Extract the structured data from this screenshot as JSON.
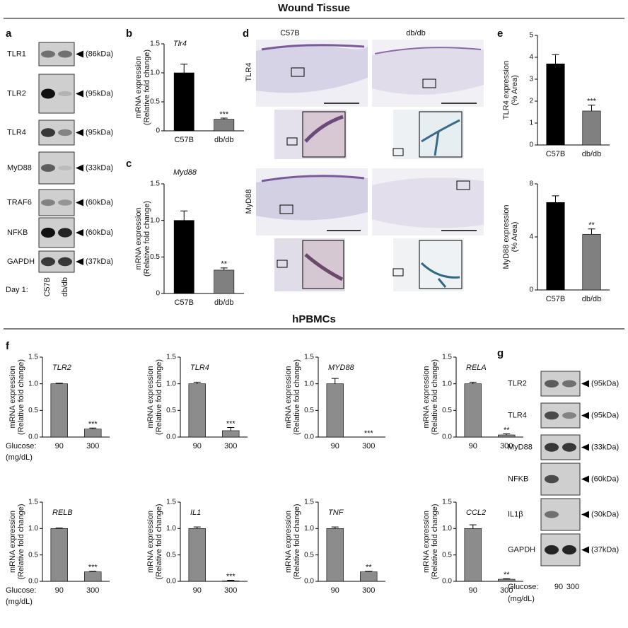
{
  "titles": [
    "Wound Tissue",
    "hPBMCs"
  ],
  "panel_a": {
    "label": "a",
    "rows": [
      {
        "name": "TLR1",
        "size": "(86kDa)"
      },
      {
        "name": "TLR2",
        "size": "(95kDa)"
      },
      {
        "name": "TLR4",
        "size": "(95kDa)"
      },
      {
        "name": "MyD88",
        "size": "(33kDa)"
      },
      {
        "name": "TRAF6",
        "size": "(60kDa)"
      },
      {
        "name": "NFKB",
        "size": "(60kDa)"
      },
      {
        "name": "GAPDH",
        "size": "(37kDa)"
      }
    ],
    "lane_prefix": "Day 1:",
    "lanes": [
      "C57B",
      "db/db"
    ]
  },
  "panel_d": {
    "label": "d",
    "columns": [
      "C57B",
      "db/db"
    ],
    "rows": [
      "TLR4",
      "MyD88"
    ]
  },
  "panel_g": {
    "label": "g",
    "rows": [
      {
        "name": "TLR2",
        "size": "(95kDa)"
      },
      {
        "name": "TLR4",
        "size": "(95kDa)"
      },
      {
        "name": "MyD88",
        "size": "(33kDa)"
      },
      {
        "name": "NFKB",
        "size": "(60kDa)"
      },
      {
        "name": "IL1β",
        "size": "(30kDa)"
      },
      {
        "name": "GAPDH",
        "size": "(37kDa)"
      }
    ],
    "lane_prefix": "Glucose:",
    "lanes": [
      "90",
      "300"
    ],
    "unit": "(mg/dL)"
  },
  "chart_data": [
    {
      "type": "bar",
      "panel": "b",
      "title": "Tlr4",
      "ylabel": [
        "mRNA expression",
        "(Relative fold change)"
      ],
      "categories": [
        "C57B",
        "db/db"
      ],
      "values": [
        1.0,
        0.2
      ],
      "errors": [
        0.15,
        0.02
      ],
      "annotations": [
        null,
        "***"
      ],
      "colors": [
        "#000000",
        "#808080"
      ],
      "ylim": [
        0,
        1.5
      ],
      "yticks": [
        0,
        0.5,
        {
          "value": 1,
          "label": "1.0"
        },
        1.5
      ]
    },
    {
      "type": "bar",
      "panel": "c",
      "title": "Myd88",
      "ylabel": [
        "mRNA expression",
        "(Relative fold change)"
      ],
      "categories": [
        "C57B",
        "db/db"
      ],
      "values": [
        1.0,
        0.32
      ],
      "errors": [
        0.13,
        0.03
      ],
      "annotations": [
        null,
        "**"
      ],
      "colors": [
        "#000000",
        "#808080"
      ],
      "ylim": [
        0,
        1.5
      ],
      "yticks": [
        0,
        0.5,
        {
          "value": 1,
          "label": "1.0"
        },
        1.5
      ]
    },
    {
      "type": "bar",
      "panel": "e",
      "ylabel": [
        "TLR4 expression",
        "(% Area)"
      ],
      "categories": [
        "C57B",
        "db/db"
      ],
      "values": [
        3.7,
        1.55
      ],
      "errors": [
        0.42,
        0.27
      ],
      "annotations": [
        null,
        "***"
      ],
      "colors": [
        "#000000",
        "#808080"
      ],
      "ylim": [
        0,
        5
      ],
      "yticks": [
        0,
        1,
        2,
        3,
        4,
        5
      ]
    },
    {
      "type": "bar",
      "ylabel": [
        "MyD88 expression",
        "(% Area)"
      ],
      "categories": [
        "C57B",
        "db/db"
      ],
      "values": [
        6.6,
        4.2
      ],
      "errors": [
        0.5,
        0.4
      ],
      "annotations": [
        null,
        "**"
      ],
      "colors": [
        "#000000",
        "#808080"
      ],
      "ylim": [
        0,
        8
      ],
      "yticks": [
        0,
        4,
        8
      ]
    },
    {
      "type": "bar",
      "panel": "f",
      "title": "TLR2",
      "ylabel": [
        "mRNA expression",
        "(Relative fold change)"
      ],
      "xlabel": [
        "Glucose:",
        "(mg/dL)"
      ],
      "categories": [
        "90",
        "300"
      ],
      "values": [
        1.0,
        0.15
      ],
      "errors": [
        0.01,
        0.02
      ],
      "annotations": [
        null,
        "***"
      ],
      "colors": [
        "#8c8c8c",
        "#8c8c8c"
      ],
      "ylim": [
        0,
        1.5
      ],
      "yticks": [
        {
          "value": 0,
          "label": "0.0"
        },
        0.5,
        {
          "value": 1,
          "label": "1.0"
        },
        1.5
      ]
    },
    {
      "type": "bar",
      "title": "TLR4",
      "ylabel": [
        "mRNA expression",
        "(Relative fold change)"
      ],
      "categories": [
        "90",
        "300"
      ],
      "values": [
        1.0,
        0.12
      ],
      "errors": [
        0.03,
        0.06
      ],
      "annotations": [
        null,
        "***"
      ],
      "colors": [
        "#8c8c8c",
        "#8c8c8c"
      ],
      "ylim": [
        0,
        1.5
      ],
      "yticks": [
        {
          "value": 0,
          "label": "0.0"
        },
        0.5,
        {
          "value": 1,
          "label": "1.0"
        },
        1.5
      ]
    },
    {
      "type": "bar",
      "title": "MYD88",
      "ylabel": [
        "mRNA expression",
        "(Relative fold change)"
      ],
      "categories": [
        "90",
        "300"
      ],
      "values": [
        1.0,
        0.0
      ],
      "errors": [
        0.1,
        0.0
      ],
      "annotations": [
        null,
        "***"
      ],
      "colors": [
        "#8c8c8c",
        "#8c8c8c"
      ],
      "ylim": [
        0,
        1.5
      ],
      "yticks": [
        {
          "value": 0,
          "label": "0.0"
        },
        0.5,
        {
          "value": 1,
          "label": "1.0"
        },
        1.5
      ]
    },
    {
      "type": "bar",
      "title": "RELA",
      "ylabel": [
        "mRNA expression",
        "(Relative fold change)"
      ],
      "categories": [
        "90",
        "300"
      ],
      "values": [
        1.0,
        0.04
      ],
      "errors": [
        0.03,
        0.02
      ],
      "annotations": [
        null,
        "**"
      ],
      "colors": [
        "#8c8c8c",
        "#8c8c8c"
      ],
      "ylim": [
        0,
        1.5
      ],
      "yticks": [
        {
          "value": 0,
          "label": "0.0"
        },
        0.5,
        {
          "value": 1,
          "label": "1.0"
        },
        1.5
      ]
    },
    {
      "type": "bar",
      "title": "RELB",
      "ylabel": [
        "mRNA expression",
        "(Relative fold change)"
      ],
      "xlabel": [
        "Glucose:",
        "(mg/dL)"
      ],
      "categories": [
        "90",
        "300"
      ],
      "values": [
        1.0,
        0.18
      ],
      "errors": [
        0.01,
        0.01
      ],
      "annotations": [
        null,
        "***"
      ],
      "colors": [
        "#8c8c8c",
        "#8c8c8c"
      ],
      "ylim": [
        0,
        1.5
      ],
      "yticks": [
        {
          "value": 0,
          "label": "0.0"
        },
        0.5,
        {
          "value": 1,
          "label": "1.0"
        },
        1.5
      ]
    },
    {
      "type": "bar",
      "title": "IL1",
      "ylabel": [
        "mRNA expression",
        "(Relative fold change)"
      ],
      "categories": [
        "90",
        "300"
      ],
      "values": [
        1.0,
        0.01
      ],
      "errors": [
        0.03,
        0.01
      ],
      "annotations": [
        null,
        "***"
      ],
      "colors": [
        "#8c8c8c",
        "#8c8c8c"
      ],
      "ylim": [
        0,
        1.5
      ],
      "yticks": [
        {
          "value": 0,
          "label": "0.0"
        },
        0.5,
        {
          "value": 1,
          "label": "1.0"
        },
        1.5
      ]
    },
    {
      "type": "bar",
      "title": "TNF",
      "ylabel": [
        "mRNA expression",
        "(Relative fold change)"
      ],
      "categories": [
        "90",
        "300"
      ],
      "values": [
        1.0,
        0.18
      ],
      "errors": [
        0.03,
        0.01
      ],
      "annotations": [
        null,
        "**"
      ],
      "colors": [
        "#8c8c8c",
        "#8c8c8c"
      ],
      "ylim": [
        0,
        1.5
      ],
      "yticks": [
        {
          "value": 0,
          "label": "0.0"
        },
        0.5,
        {
          "value": 1,
          "label": "1.0"
        },
        1.5
      ]
    },
    {
      "type": "bar",
      "title": "CCL2",
      "ylabel": [
        "mRNA expression",
        "(Relative fold change)"
      ],
      "categories": [
        "90",
        "300"
      ],
      "values": [
        1.0,
        0.04
      ],
      "errors": [
        0.07,
        0.01
      ],
      "annotations": [
        null,
        "**"
      ],
      "colors": [
        "#8c8c8c",
        "#8c8c8c"
      ],
      "ylim": [
        0,
        1.5
      ],
      "yticks": [
        {
          "value": 0,
          "label": "0.0"
        },
        0.5,
        {
          "value": 1,
          "label": "1.0"
        },
        1.5
      ]
    }
  ]
}
